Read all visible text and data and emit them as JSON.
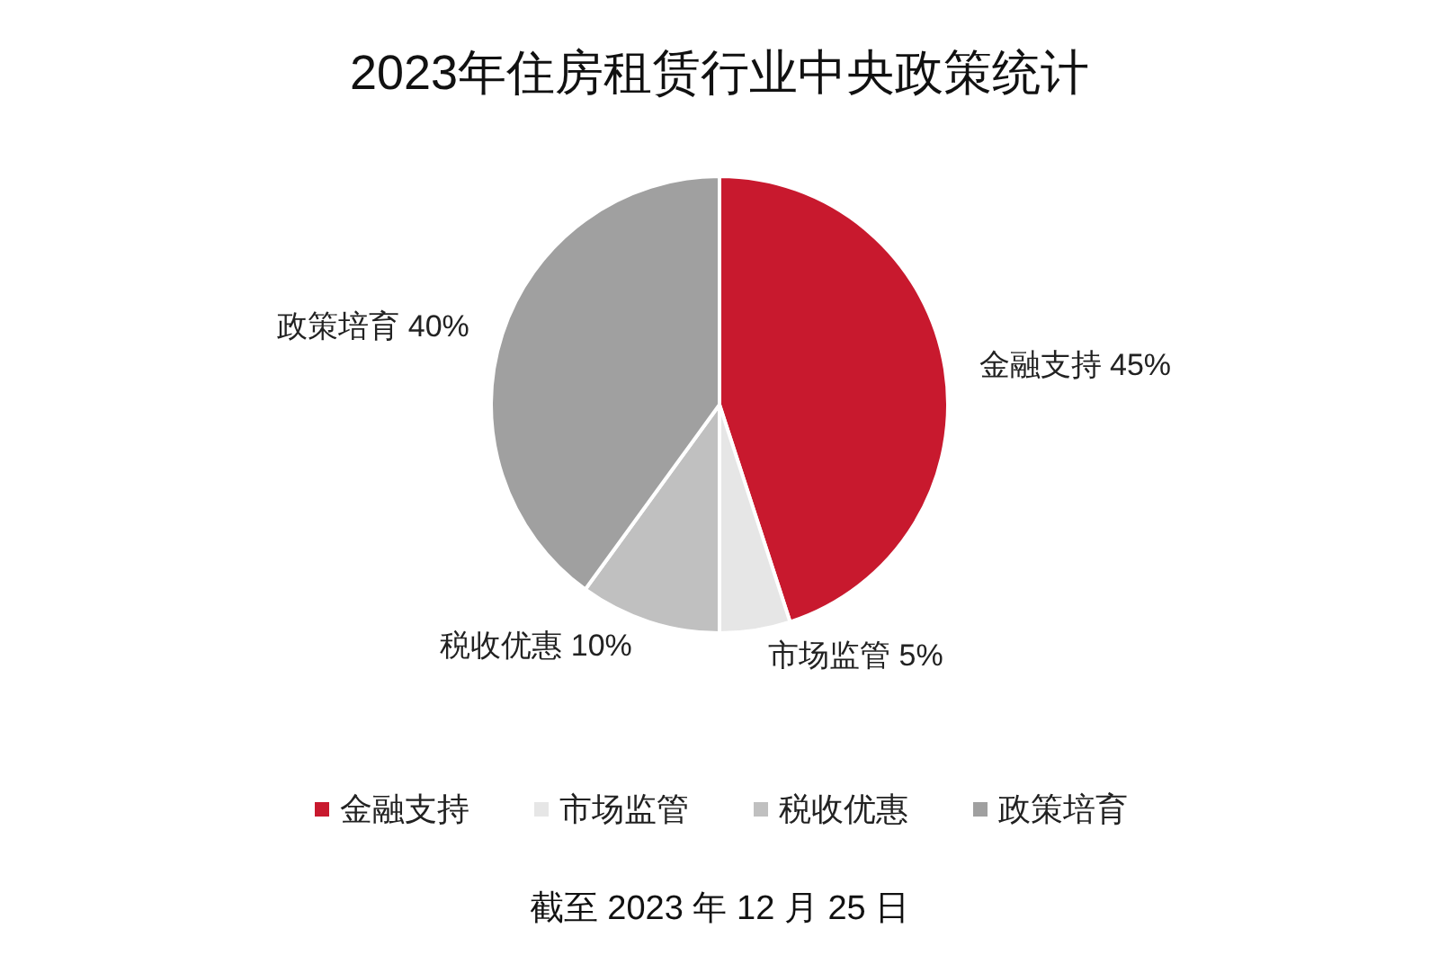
{
  "chart_data": {
    "type": "pie",
    "title": "2023年住房租赁行业中央政策统计",
    "categories": [
      "金融支持",
      "市场监管",
      "税收优惠",
      "政策培育"
    ],
    "values": [
      45,
      5,
      10,
      40
    ],
    "colors": [
      "#c8192e",
      "#e6e6e6",
      "#c0c0c0",
      "#a0a0a0"
    ],
    "value_labels": [
      "45%",
      "5%",
      "10%",
      "40%"
    ],
    "legend": "bottom",
    "annotations": [
      "截至 2023 年 12 月 25 日"
    ]
  }
}
